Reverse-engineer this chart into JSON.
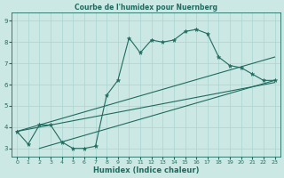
{
  "title": "Courbe de l'humidex pour Nuernberg",
  "xlabel": "Humidex (Indice chaleur)",
  "x": [
    0,
    1,
    2,
    3,
    4,
    5,
    6,
    7,
    8,
    9,
    10,
    11,
    12,
    13,
    14,
    15,
    16,
    17,
    18,
    19,
    20,
    21,
    22,
    23
  ],
  "y": [
    3.8,
    3.2,
    4.1,
    4.1,
    3.3,
    3.0,
    3.0,
    3.1,
    5.5,
    6.2,
    8.2,
    7.5,
    8.1,
    8.0,
    8.1,
    8.5,
    8.6,
    8.4,
    7.3,
    6.9,
    6.8,
    6.5,
    6.2,
    6.2
  ],
  "trend1_x": [
    0,
    23
  ],
  "trend1_y": [
    3.8,
    7.3
  ],
  "trend2_x": [
    0,
    23
  ],
  "trend2_y": [
    3.8,
    6.1
  ],
  "trend3_x": [
    2,
    23
  ],
  "trend3_y": [
    3.0,
    6.2
  ],
  "line_color": "#1f6b5e",
  "bg_color": "#cce8e5",
  "grid_color": "#a8d5d0",
  "xlim": [
    -0.5,
    23.5
  ],
  "ylim": [
    2.6,
    9.4
  ],
  "yticks": [
    3,
    4,
    5,
    6,
    7,
    8,
    9
  ],
  "xticks": [
    0,
    1,
    2,
    3,
    4,
    5,
    6,
    7,
    8,
    9,
    10,
    11,
    12,
    13,
    14,
    15,
    16,
    17,
    18,
    19,
    20,
    21,
    22,
    23
  ],
  "title_fontsize": 5.5,
  "xlabel_fontsize": 6.0,
  "tick_fontsize": 4.5
}
